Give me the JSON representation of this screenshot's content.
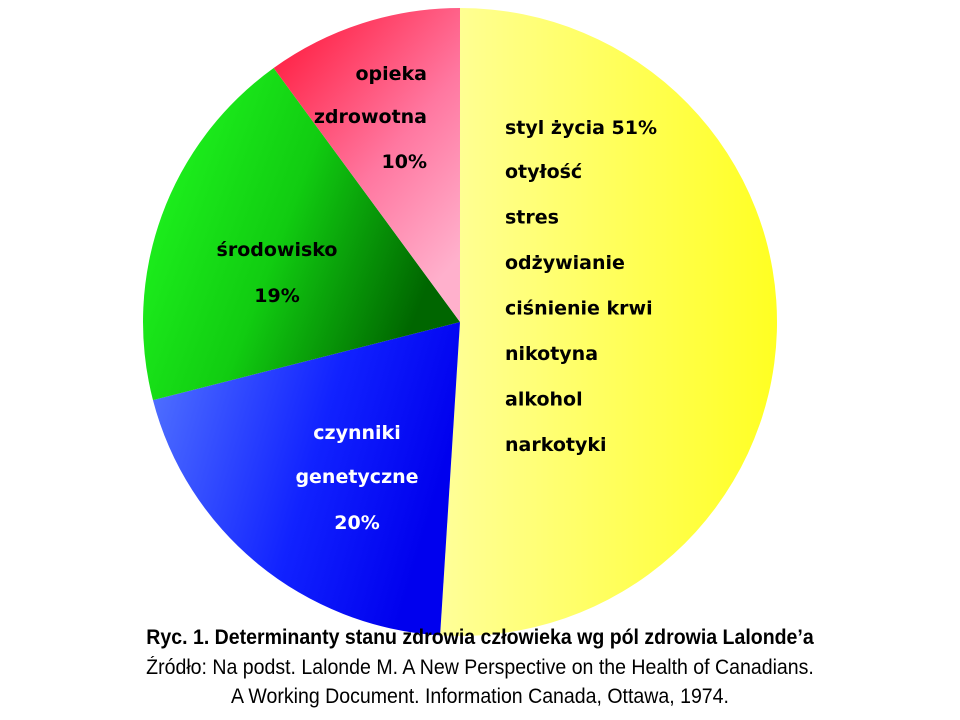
{
  "chart_data": {
    "type": "pie",
    "start_angle_deg": 0,
    "direction": "clockwise",
    "slices": [
      {
        "label": "styl życia",
        "value": 51,
        "value_label": "51%",
        "color": "#ffff33",
        "details": [
          "otyłość",
          "stres",
          "odżywianie",
          "ciśnienie krwi",
          "nikotyna",
          "alkohol",
          "narkotyki"
        ]
      },
      {
        "label": "czynniki genetyczne",
        "label_lines": [
          "czynniki",
          "genetyczne"
        ],
        "value": 20,
        "value_label": "20%",
        "color": "#2233ff"
      },
      {
        "label": "środowisko",
        "label_lines": [
          "środowisko"
        ],
        "value": 19,
        "value_label": "19%",
        "color": "#11cc11"
      },
      {
        "label": "opieka zdrowotna",
        "label_lines": [
          "opieka",
          "zdrowotna"
        ],
        "value": 10,
        "value_label": "10%",
        "color": "#ff2d4a"
      }
    ]
  },
  "caption": {
    "title": "Ryc. 1. Determinanty stanu zdrowia człowieka wg pól zdrowia Lalonde’a",
    "source_line1": "Źródło: Na podst. Lalonde M. A New Perspective on the Health of Canadians.",
    "source_line2": "A Working Document. Information Canada, Ottawa, 1974."
  }
}
